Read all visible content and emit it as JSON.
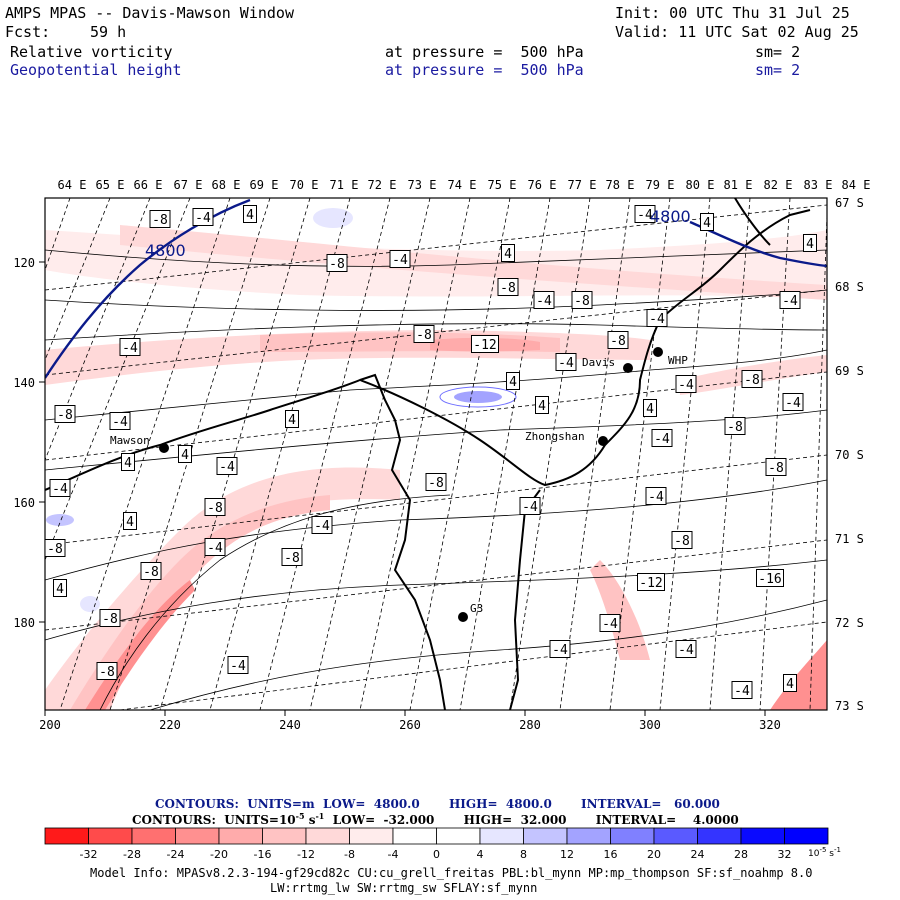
{
  "header": {
    "title": "AMPS MPAS -- Davis-Mawson Window",
    "init": "Init: 00 UTC Thu 31 Jul 25",
    "fcst_label": "Fcst:",
    "fcst_value": "59 h",
    "valid": "Valid: 11 UTC Sat 02 Aug 25",
    "field1": {
      "name": "Relative vorticity",
      "level": "at pressure =  500 hPa",
      "sm": "sm= 2"
    },
    "field2": {
      "name": "Geopotential height",
      "level": "at pressure =  500 hPa",
      "sm": "sm= 2"
    }
  },
  "axes": {
    "lon_top": [
      "64 E",
      "65 E",
      "66 E",
      "67 E",
      "68 E",
      "69 E",
      "70 E",
      "71 E",
      "72 E",
      "73 E",
      "74 E",
      "75 E",
      "76 E",
      "77 E",
      "78 E",
      "79 E",
      "80 E",
      "81 E",
      "82 E",
      "83 E",
      "84 E"
    ],
    "lat_right": [
      "67 S",
      "68 S",
      "69 S",
      "70 S",
      "71 S",
      "72 S",
      "73 S"
    ],
    "x_ticks": [
      "200",
      "220",
      "240",
      "260",
      "280",
      "300",
      "320"
    ],
    "y_ticks": [
      "120",
      "140",
      "160",
      "180"
    ]
  },
  "stations": [
    {
      "name": "Mawson"
    },
    {
      "name": "Davis"
    },
    {
      "name": "WHP"
    },
    {
      "name": "Zhongshan"
    },
    {
      "name": "G3"
    }
  ],
  "height_labels": [
    "4800",
    "4800"
  ],
  "vort_labels": [
    "-8",
    "-4",
    "4",
    "-8",
    "-4",
    "4",
    "-8",
    "-4",
    "-8",
    "-4",
    "-4",
    "-8",
    "-12",
    "-8",
    "-4",
    "-4",
    "-4",
    "4",
    "-8",
    "-8",
    "-4",
    "4",
    "4",
    "4",
    "-8",
    "4",
    "-4",
    "4",
    "-8",
    "-4",
    "-8",
    "-4",
    "-8",
    "-4",
    "-4",
    "4",
    "-4",
    "-8",
    "-4",
    "-8",
    "-8",
    "-8",
    "-12",
    "-8",
    "-4",
    "-4",
    "-16",
    "4",
    "4",
    "-4",
    "4",
    "-4",
    "-8",
    "-4",
    "-4",
    "-4",
    "4"
  ],
  "contours_line1": "CONTOURS:  UNITS=m  LOW=  4800.0       HIGH=  4800.0       INTERVAL=   60.000",
  "contours_line2_a": "CONTOURS:  UNITS=10",
  "contours_line2_sup1": "-5",
  "contours_line2_b": " s",
  "contours_line2_sup2": "-1",
  "contours_line2_c": "  LOW=  -32.000       HIGH=  32.000       INTERVAL=    4.0000",
  "colorbar": {
    "colors": [
      "#ff1a1a",
      "#ff4b4b",
      "#ff7070",
      "#ff9090",
      "#ffabab",
      "#ffc3c3",
      "#ffd9d9",
      "#ffecec",
      "#ffffff",
      "#ffffff",
      "#e6e6ff",
      "#c4c4ff",
      "#a3a3ff",
      "#8080ff",
      "#5a5aff",
      "#3434ff",
      "#0a0aff",
      "#0000ff"
    ],
    "labels": [
      "-32",
      "-28",
      "-24",
      "-20",
      "-16",
      "-12",
      "-8",
      "-4",
      "0",
      "4",
      "8",
      "12",
      "16",
      "20",
      "24",
      "28",
      "32"
    ],
    "units_a": "10",
    "units_sup1": "-5",
    "units_b": " s",
    "units_sup2": "-1"
  },
  "model_info_1": "Model Info: MPASv8.2.3-194-gf29cd82c CU:cu_grell_freitas PBL:bl_mynn MP:mp_thompson SF:sf_noahmp 8.0",
  "model_info_2": "LW:rrtmg_lw SW:rrtmg_sw SFLAY:sf_mynn"
}
